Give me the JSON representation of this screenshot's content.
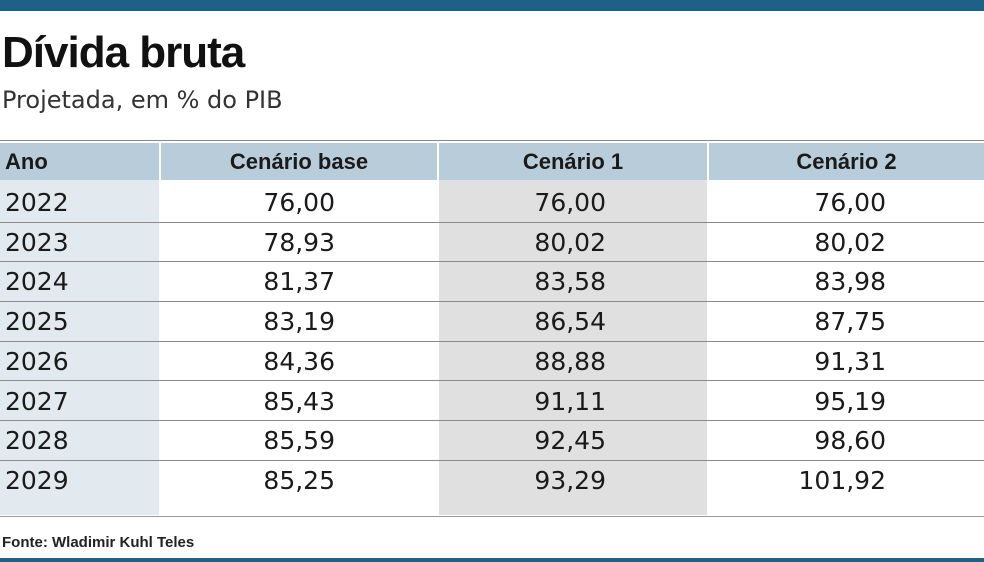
{
  "title": "Dívida bruta",
  "subtitle": "Projetada, em % do PIB",
  "source": "Fonte: Wladimir Kuhl Teles",
  "colors": {
    "accent_bar": "#1d6187",
    "header_bg": "#b8cdd9",
    "year_col_bg": "#e2eaef",
    "scenario1_bg": "#e0e0e0"
  },
  "chart_data": {
    "type": "table",
    "title": "Dívida bruta",
    "subtitle": "Projetada, em % do PIB",
    "columns": [
      "Ano",
      "Cenário base",
      "Cenário 1",
      "Cenário 2"
    ],
    "rows": [
      [
        "2022",
        "76,00",
        "76,00",
        "76,00"
      ],
      [
        "2023",
        "78,93",
        "80,02",
        "80,02"
      ],
      [
        "2024",
        "81,37",
        "83,58",
        "83,98"
      ],
      [
        "2025",
        "83,19",
        "86,54",
        "87,75"
      ],
      [
        "2026",
        "84,36",
        "88,88",
        "91,31"
      ],
      [
        "2027",
        "85,43",
        "91,11",
        "95,19"
      ],
      [
        "2028",
        "85,59",
        "92,45",
        "98,60"
      ],
      [
        "2029",
        "85,25",
        "93,29",
        "101,92"
      ]
    ]
  }
}
